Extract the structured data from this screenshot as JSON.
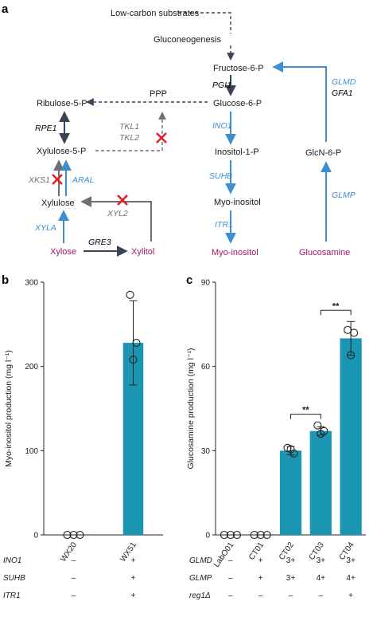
{
  "panels": {
    "a": "a",
    "b": "b",
    "c": "c"
  },
  "colors": {
    "dark": "#3a4258",
    "blue": "#3d8fd1",
    "gray": "#6f6f6f",
    "red": "#e0202a",
    "magenta": "#a3146b",
    "bar": "#1a96b3"
  },
  "pathway": {
    "low_carbon": "Low-carbon substrates",
    "gluconeogenesis": "Gluconeogenesis",
    "f6p": "Fructose-6-P",
    "pgi1": "PGI1",
    "g6p": "Glucose-6-P",
    "ppp": "PPP",
    "ribulose": "Ribulose-5-P",
    "rpe1": "RPE1",
    "tkl1": "TKL1",
    "tkl2": "TKL2",
    "xylulose5p": "Xylulose-5-P",
    "xks1": "XKS1",
    "aral": "ARAL",
    "xylulose": "Xylulose",
    "xyl2": "XYL2",
    "xyla": "XYLA",
    "gre3": "GRE3",
    "xylose": "Xylose",
    "xylitol": "Xylitol",
    "ino1": "INO1",
    "inositol1p": "Inositol-1-P",
    "suhb": "SUHB",
    "myoinositol_mid": "Myo-inositol",
    "itr1": "ITR1",
    "myoinositol_product": "Myo-inositol",
    "glmd": "GLMD",
    "gfa1": "GFA1",
    "glcn6p": "GlcN-6-P",
    "glmp": "GLMP",
    "glucosamine": "Glucosamine"
  },
  "chart_data": [
    {
      "type": "bar",
      "panel": "b",
      "ylabel": "Myo-inositol production (mg l⁻¹)",
      "ylim": [
        0,
        300
      ],
      "yticks": [
        0,
        100,
        200,
        300
      ],
      "categories": [
        "WX20",
        "WX51"
      ],
      "values": [
        0,
        228
      ],
      "errors": [
        0,
        50
      ],
      "points": [
        [
          0,
          0,
          0
        ],
        [
          285,
          228,
          208
        ]
      ],
      "genotype_rows": [
        {
          "label": "INO1",
          "values": [
            "–",
            "+"
          ]
        },
        {
          "label": "SUHB",
          "values": [
            "–",
            "+"
          ]
        },
        {
          "label": "ITR1",
          "values": [
            "–",
            "+"
          ]
        }
      ]
    },
    {
      "type": "bar",
      "panel": "c",
      "ylabel": "Glucosamine production (mg l⁻¹)",
      "ylim": [
        0,
        90
      ],
      "yticks": [
        0,
        30,
        60,
        90
      ],
      "categories": [
        "LabO01",
        "CT01",
        "CT02",
        "CT03",
        "CT04"
      ],
      "values": [
        0,
        0,
        30,
        37,
        70
      ],
      "errors": [
        0,
        0,
        1.5,
        1.5,
        6
      ],
      "points": [
        [
          0,
          0,
          0
        ],
        [
          0,
          0,
          0
        ],
        [
          31,
          29,
          30.5
        ],
        [
          39,
          37,
          36
        ],
        [
          73,
          72,
          64
        ]
      ],
      "significance": [
        {
          "from": 2,
          "to": 3,
          "label": "**"
        },
        {
          "from": 3,
          "to": 4,
          "label": "**"
        }
      ],
      "genotype_rows": [
        {
          "label": "GLMD",
          "values": [
            "–",
            "+",
            "3+",
            "3+",
            "3+"
          ]
        },
        {
          "label": "GLMP",
          "values": [
            "–",
            "+",
            "3+",
            "4+",
            "4+"
          ]
        },
        {
          "label": "reg1Δ",
          "values": [
            "–",
            "–",
            "–",
            "–",
            "+"
          ]
        }
      ]
    }
  ]
}
